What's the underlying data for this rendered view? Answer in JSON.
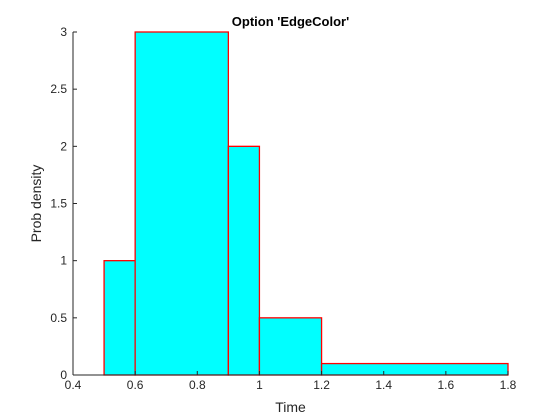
{
  "chart_data": {
    "type": "bar",
    "title": "Option 'EdgeColor'",
    "xlabel": "Time",
    "ylabel": "Prob density",
    "xlim": [
      0.4,
      1.8
    ],
    "ylim": [
      0,
      3
    ],
    "xticks": [
      0.4,
      0.6,
      0.8,
      1.0,
      1.2,
      1.4,
      1.6,
      1.8
    ],
    "xtick_labels": [
      "0.4",
      "0.6",
      "0.8",
      "1",
      "1.2",
      "1.4",
      "1.6",
      "1.8"
    ],
    "yticks": [
      0,
      0.5,
      1,
      1.5,
      2,
      2.5,
      3
    ],
    "ytick_labels": [
      "0",
      "0.5",
      "1",
      "1.5",
      "2",
      "2.5",
      "3"
    ],
    "bins": [
      {
        "start": 0.5,
        "end": 0.6,
        "value": 1.0
      },
      {
        "start": 0.6,
        "end": 0.9,
        "value": 3.0
      },
      {
        "start": 0.9,
        "end": 1.0,
        "value": 2.0
      },
      {
        "start": 1.0,
        "end": 1.2,
        "value": 0.5
      },
      {
        "start": 1.2,
        "end": 1.8,
        "value": 0.1
      }
    ],
    "face_color": "#00ffff",
    "edge_color": "#ff0000",
    "axis_color": "#262626",
    "grid": false
  }
}
